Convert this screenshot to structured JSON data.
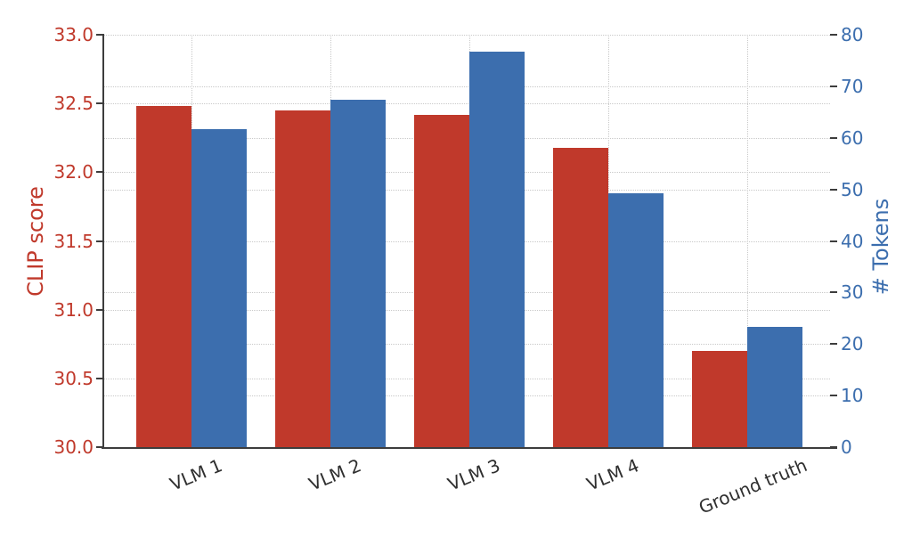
{
  "chart_data": {
    "type": "bar",
    "title": "",
    "categories": [
      "VLM 1",
      "VLM 2",
      "VLM 3",
      "VLM 4",
      "Ground truth"
    ],
    "series": [
      {
        "name": "CLIP score",
        "axis": "left",
        "color": "#c0392b",
        "values": [
          32.48,
          32.45,
          32.42,
          32.18,
          30.7
        ]
      },
      {
        "name": "# Tokens",
        "axis": "right",
        "color": "#3c6eae",
        "values": [
          61.7,
          67.4,
          76.8,
          49.2,
          23.3
        ]
      }
    ],
    "left_axis": {
      "label": "CLIP score",
      "color": "#c0392b",
      "min": 30.0,
      "max": 33.0,
      "ticks": [
        "33.0",
        "32.5",
        "32.0",
        "31.5",
        "31.0",
        "30.5",
        "30.0"
      ],
      "tick_values": [
        33.0,
        32.5,
        32.0,
        31.5,
        31.0,
        30.5,
        30.0
      ]
    },
    "right_axis": {
      "label": "# Tokens",
      "color": "#3c6eae",
      "min": 0,
      "max": 80,
      "ticks": [
        "80",
        "70",
        "60",
        "50",
        "40",
        "30",
        "20",
        "10",
        "0"
      ],
      "tick_values": [
        80,
        70,
        60,
        50,
        40,
        30,
        20,
        10,
        0
      ]
    },
    "x_axis": {
      "tick_color": "#2f2f2f",
      "tick_rotation_deg": 22.5
    },
    "grid": {
      "horizontal": true,
      "vertical": true,
      "style": "dotted",
      "color": "#c9c9c9"
    },
    "legend": null,
    "background": "#ffffff"
  }
}
